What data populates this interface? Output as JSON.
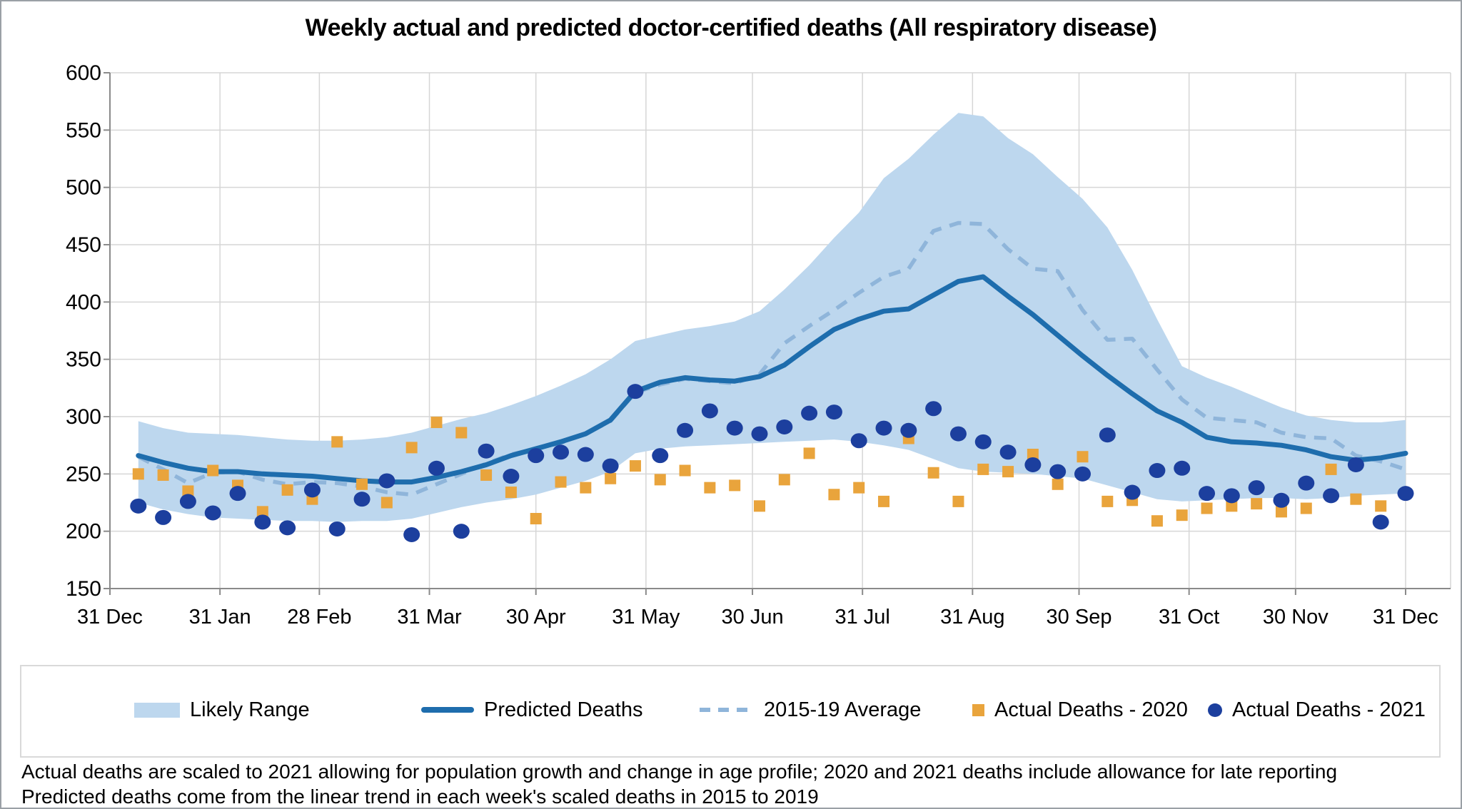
{
  "title": "Weekly actual and predicted doctor-certified deaths (All respiratory disease)",
  "legend": [
    {
      "label": "Likely Range"
    },
    {
      "label": "Predicted Deaths"
    },
    {
      "label": "2015-19 Average"
    },
    {
      "label": "Actual Deaths - 2020"
    },
    {
      "label": "Actual Deaths - 2021"
    }
  ],
  "footnotes": [
    "Actual deaths are scaled to 2021 allowing for population growth and change in age profile; 2020 and 2021 deaths include allowance for late reporting",
    "Predicted deaths come from the linear trend in each week's scaled deaths in 2015 to 2019"
  ],
  "colors": {
    "band": "#bdd7ee",
    "predicted": "#1e6dad",
    "average": "#8fb5da",
    "actual2020": "#e9a43c",
    "actual2021": "#1c3f9e",
    "gridline": "#d6d6d6",
    "axis": "#8a8a8a",
    "text": "#000000"
  },
  "chart_data": {
    "type": "line",
    "title": "Weekly actual and predicted doctor-certified deaths (All respiratory disease)",
    "xlabel": "",
    "ylabel": "",
    "grid": true,
    "legend_position": "bottom",
    "y_axis": {
      "min": 150,
      "max": 600,
      "step": 50,
      "ticks": [
        150,
        200,
        250,
        300,
        350,
        400,
        450,
        500,
        550,
        600
      ]
    },
    "x_axis": {
      "tick_labels": [
        "31 Dec",
        "31 Jan",
        "28 Feb",
        "31 Mar",
        "30 Apr",
        "31 May",
        "30 Jun",
        "31 Jul",
        "31 Aug",
        "30 Sep",
        "31 Oct",
        "30 Nov",
        "31 Dec"
      ],
      "tick_days": [
        0,
        31,
        59,
        90,
        120,
        151,
        181,
        212,
        243,
        273,
        304,
        334,
        365
      ],
      "range_days": [
        0,
        365
      ]
    },
    "week_days": [
      8,
      15,
      22,
      29,
      36,
      43,
      50,
      57,
      64,
      71,
      78,
      85,
      92,
      99,
      106,
      113,
      120,
      127,
      134,
      141,
      148,
      155,
      162,
      169,
      176,
      183,
      190,
      197,
      204,
      211,
      218,
      225,
      232,
      239,
      246,
      253,
      260,
      267,
      274,
      281,
      288,
      295,
      302,
      309,
      316,
      323,
      330,
      337,
      344,
      351,
      358,
      365
    ],
    "series": [
      {
        "name": "Likely Range",
        "type": "band",
        "upper": [
          296,
          290,
          286,
          285,
          284,
          282,
          280,
          279,
          279,
          280,
          282,
          286,
          292,
          298,
          303,
          310,
          318,
          327,
          337,
          350,
          366,
          371,
          376,
          379,
          383,
          392,
          411,
          432,
          456,
          478,
          508,
          525,
          546,
          565,
          562,
          543,
          529,
          509,
          490,
          465,
          428,
          385,
          344,
          334,
          326,
          317,
          308,
          301,
          297,
          295,
          295,
          297
        ],
        "lower": [
          225,
          219,
          215,
          212,
          211,
          210,
          209,
          209,
          208,
          209,
          209,
          211,
          216,
          221,
          225,
          228,
          232,
          238,
          244,
          252,
          268,
          272,
          274,
          275,
          276,
          277,
          278,
          279,
          280,
          278,
          275,
          271,
          263,
          255,
          252,
          251,
          250,
          248,
          246,
          240,
          234,
          228,
          226,
          227,
          228,
          229,
          229,
          228,
          229,
          231,
          232,
          233
        ]
      },
      {
        "name": "Predicted Deaths",
        "type": "line",
        "values": [
          266,
          260,
          255,
          252,
          252,
          250,
          249,
          248,
          246,
          244,
          243,
          243,
          247,
          252,
          258,
          266,
          272,
          278,
          285,
          297,
          322,
          330,
          334,
          332,
          331,
          335,
          345,
          361,
          376,
          385,
          392,
          394,
          406,
          418,
          422,
          405,
          389,
          371,
          353,
          336,
          320,
          305,
          295,
          282,
          278,
          277,
          275,
          271,
          265,
          262,
          264,
          268
        ]
      },
      {
        "name": "2015-19 Average",
        "type": "dashed-line",
        "values": [
          265,
          254,
          242,
          251,
          252,
          245,
          241,
          243,
          242,
          239,
          234,
          232,
          241,
          250,
          259,
          267,
          272,
          277,
          285,
          296,
          321,
          328,
          333,
          331,
          329,
          337,
          364,
          379,
          393,
          408,
          422,
          429,
          462,
          469,
          468,
          446,
          429,
          427,
          393,
          367,
          368,
          341,
          315,
          299,
          297,
          295,
          286,
          282,
          281,
          266,
          261,
          254
        ]
      },
      {
        "name": "Actual Deaths - 2020",
        "type": "scatter-square",
        "values": [
          250,
          249,
          235,
          253,
          240,
          217,
          236,
          228,
          278,
          241,
          225,
          273,
          295,
          286,
          249,
          234,
          211,
          243,
          238,
          246,
          257,
          245,
          253,
          238,
          240,
          222,
          245,
          268,
          232,
          238,
          226,
          281,
          251,
          226,
          254,
          252,
          267,
          241,
          265,
          226,
          227,
          209,
          214,
          220,
          222,
          224,
          217,
          220,
          254,
          228,
          222,
          null
        ]
      },
      {
        "name": "Actual Deaths - 2021",
        "type": "scatter-circle",
        "values": [
          222,
          212,
          226,
          216,
          233,
          208,
          203,
          236,
          202,
          228,
          244,
          197,
          255,
          200,
          270,
          248,
          266,
          269,
          267,
          257,
          322,
          266,
          288,
          305,
          290,
          285,
          291,
          303,
          304,
          279,
          290,
          288,
          307,
          285,
          278,
          269,
          258,
          252,
          250,
          284,
          234,
          253,
          255,
          233,
          231,
          238,
          227,
          242,
          231,
          258,
          208,
          233
        ]
      }
    ]
  }
}
